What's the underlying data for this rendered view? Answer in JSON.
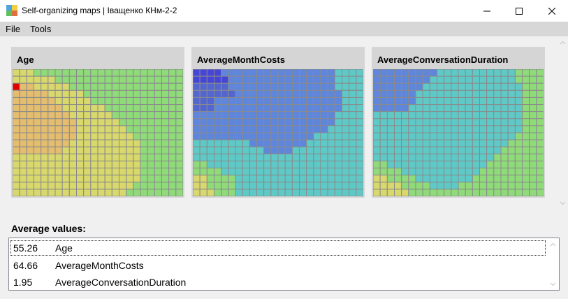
{
  "window": {
    "title": "Self-organizing maps | Іващенко КНм-2-2",
    "controls": [
      "minimize-icon",
      "maximize-icon",
      "close-icon"
    ]
  },
  "menu": [
    {
      "label": "File"
    },
    {
      "label": "Tools"
    }
  ],
  "maps": [
    {
      "title": "Age",
      "cols": 24,
      "rows": 18,
      "marker": {
        "col": 0,
        "row": 2,
        "color": "#e00000"
      },
      "palette": {
        "O": "#e4bd6e",
        "Y": "#d8d86c",
        "G": "#8fdb7a"
      },
      "rows_data": [
        "YYYGGGGGGGGGGGGGGGGGGGGG",
        "YYYYYYGGGGGGGGGGGGGGGGGG",
        "OOOYYYYYGGGGGGGGGGGGGGGG",
        "OOOOOYYYYYGGGGGGGGGGGGGG",
        "OOOOOOYYYYYGGGGGGGGGGGGG",
        "OOOOOOOYYYYYYGGGGGGGGGGG",
        "OOOOOOOOYYYYYYGGGGGGGGGG",
        "OOOOOOOOOYYYYYYGGGGGGGGG",
        "OOOOOOOOOYYYYYYYGGGGGGGG",
        "OOOOOOOOOYYYYYYYYGGGGGGG",
        "OOOOOOOOYYYYYYYYYYGGGGGG",
        "OOOOOOOYYYYYYYYYYYGGGGGG",
        "YYYYYYYYYYYYYYYYYYGGGGGG",
        "YYYYYYYYYYYYYYYYYYGGGGGG",
        "YYYYYYYYYYYYYYYYYYGGGGGG",
        "YYYYYYYYYYYYYYYYYYGGGGGG",
        "YYYYYYYYYYYYYYYYYGGGGGGG",
        "YYYYYYYYYYYYYYYYGGGGGGGG"
      ]
    },
    {
      "title": "AverageMonthCosts",
      "cols": 24,
      "rows": 18,
      "palette": {
        "D": "#4545d8",
        "M": "#5366cf",
        "B": "#5e86dc",
        "T": "#5ecac8",
        "G": "#8fdb7a",
        "Y": "#d8d86c"
      },
      "rows_data": [
        "DDDDBBBBBBBBBBBBBBBBTTTT",
        "DDDDDBBBBBBBBBBBBBBBTTTT",
        "MMMMMBBBBBBBBBBBBBBBTTTT",
        "MMMMMMBBBBBBBBBBBBBBBTTT",
        "MMMBBBBBBBBBBBBBBBBBBTTT",
        "MMMBBBBBBBBBBBBBBBBBBTTT",
        "BBBBBBBBBBBBBBBBBBBBTTTT",
        "BBBBBBBBBBBBBBBBBBBBTTTT",
        "BBBBBBBBBBBBBBBBBBBTTTTT",
        "BBBBBBBBBBBBBBBBBTTTTTTT",
        "TTTTTTTTBBBBBBBBTTTTTTTT",
        "TTTTTTTTTTBBBBTTTTTTTTTT",
        "TTTTTTTTTTTTTTTTTTTTTTTT",
        "GGTTTTTTTTTTTTTTTTTTTTTT",
        "GGGGTTTTTTTTTTTTTTTTTTTT",
        "YYGGGGTTTTTTTTTTTTTTTTTT",
        "YYGGGGTTTTTTTTTTTTTTTTTT",
        "YYYGGGTTTTTTTTTTTTTTTTTT"
      ]
    },
    {
      "title": "AverageConversationDuration",
      "cols": 24,
      "rows": 18,
      "palette": {
        "B": "#5e86dc",
        "T": "#5ecac8",
        "G": "#8fdb7a",
        "Y": "#d8d86c"
      },
      "rows_data": [
        "BBBBBBBBBTTTTTTTTTTTGGGG",
        "BBBBBBBBTTTTTTTTTTTTGGGG",
        "BBBBBBBTTTTTTTTTTTTTTGGG",
        "BBBBBBTTTTTTTTTTTTTTTGGG",
        "BBBBBBTTTTTTTTTTTTTTTGGG",
        "BBBBBTTTTTTTTTTTTTTTTGGG",
        "TTTTTTTTTTTTTTTTTTTTTGGG",
        "TTTTTTTTTTTTTTTTTTTTTGGG",
        "TTTTTTTTTTTTTTTTTTTTTGGG",
        "TTTTTTTTTTTTTTTTTTTTGGGG",
        "TTTTTTTTTTTTTTTTTTTGGGGG",
        "TTTTTTTTTTTTTTTTTTGGGGGG",
        "TTTTTTTTTTTTTTTTTGGGGGGG",
        "GGTTTTTTTTTTTTTTGGGGGGGG",
        "GGGGTTTTTTTTTTTGGGGGGGGG",
        "YYGGGGTTTTTTTTGGGGGGGGGG",
        "YYYYGGGGTTTTGGGGGGGGGGGG",
        "YYYYYGGGGGGGGGGGGGGGGGGG"
      ]
    }
  ],
  "averages": {
    "label": "Average values:",
    "rows": [
      {
        "value": "55.26",
        "name": "Age"
      },
      {
        "value": "64.66",
        "name": "AverageMonthCosts"
      },
      {
        "value": "1.95",
        "name": "AverageConversationDuration"
      }
    ]
  }
}
